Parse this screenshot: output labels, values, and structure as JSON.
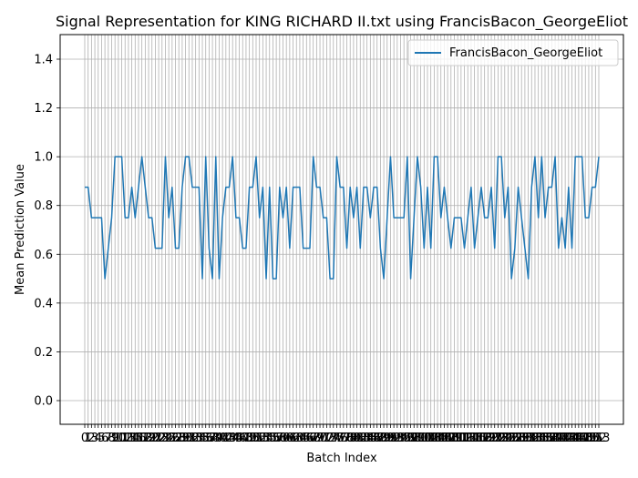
{
  "chart_data": {
    "type": "line",
    "title": "Signal Representation for KING RICHARD II.txt using FrancisBacon_GeorgeEliot",
    "xlabel": "Batch Index",
    "ylabel": "Mean Prediction Value",
    "ylim": [
      -0.1,
      1.5
    ],
    "yticks": [
      "0.0",
      "0.2",
      "0.4",
      "0.6",
      "0.8",
      "1.0",
      "1.2",
      "1.4"
    ],
    "grid": true,
    "legend_position": "upper right",
    "series": [
      {
        "name": "FrancisBacon_GeorgeEliot",
        "color": "#1f77b4",
        "x": [
          0,
          1,
          2,
          3,
          4,
          5,
          6,
          7,
          8,
          9,
          10,
          11,
          12,
          13,
          14,
          15,
          16,
          17,
          18,
          19,
          20,
          21,
          22,
          23,
          24,
          25,
          26,
          27,
          28,
          29,
          30,
          31,
          32,
          33,
          34,
          35,
          36,
          37,
          38,
          39,
          40,
          41,
          42,
          43,
          44,
          45,
          46,
          47,
          48,
          49,
          50,
          51,
          52,
          53,
          54,
          55,
          56,
          57,
          58,
          59,
          60,
          61,
          62,
          63,
          64,
          65,
          66,
          67,
          68,
          69,
          70,
          71,
          72,
          73,
          74,
          75,
          76,
          77,
          78,
          79,
          80,
          81,
          82,
          83,
          84,
          85,
          86,
          87,
          88,
          89,
          90,
          91,
          92,
          93,
          94,
          95,
          96,
          97,
          98,
          99,
          100,
          101,
          102,
          103,
          104,
          105,
          106,
          107,
          108,
          109,
          110,
          111,
          112,
          113,
          114,
          115,
          116,
          117,
          118,
          119,
          120,
          121,
          122,
          123,
          124,
          125,
          126,
          127,
          128,
          129,
          130,
          131,
          132,
          133,
          134,
          135,
          136,
          137,
          138,
          139,
          140,
          141,
          142,
          143,
          144,
          145,
          146,
          147,
          148,
          149,
          150,
          151,
          152,
          153
        ],
        "values": [
          0.875,
          0.875,
          0.75,
          0.75,
          0.75,
          0.75,
          0.5,
          0.625,
          0.75,
          1.0,
          1.0,
          1.0,
          0.75,
          0.75,
          0.875,
          0.75,
          0.875,
          1.0,
          0.875,
          0.75,
          0.75,
          0.625,
          0.625,
          0.625,
          1.0,
          0.75,
          0.875,
          0.625,
          0.625,
          0.875,
          1.0,
          1.0,
          0.875,
          0.875,
          0.875,
          0.5,
          1.0,
          0.625,
          0.5,
          1.0,
          0.5,
          0.75,
          0.875,
          0.875,
          1.0,
          0.75,
          0.75,
          0.625,
          0.625,
          0.875,
          0.875,
          1.0,
          0.75,
          0.875,
          0.5,
          0.875,
          0.5,
          0.5,
          0.875,
          0.75,
          0.875,
          0.625,
          0.875,
          0.875,
          0.875,
          0.625,
          0.625,
          0.625,
          1.0,
          0.875,
          0.875,
          0.75,
          0.75,
          0.5,
          0.5,
          1.0,
          0.875,
          0.875,
          0.625,
          0.875,
          0.75,
          0.875,
          0.625,
          0.875,
          0.875,
          0.75,
          0.875,
          0.875,
          0.625,
          0.5,
          0.75,
          1.0,
          0.75,
          0.75,
          0.75,
          0.75,
          1.0,
          0.5,
          0.75,
          1.0,
          0.875,
          0.625,
          0.875,
          0.625,
          1.0,
          1.0,
          0.75,
          0.875,
          0.75,
          0.625,
          0.75,
          0.75,
          0.75,
          0.625,
          0.75,
          0.875,
          0.625,
          0.75,
          0.875,
          0.75,
          0.75,
          0.875,
          0.625,
          1.0,
          1.0,
          0.75,
          0.875,
          0.5,
          0.625,
          0.875,
          0.75,
          0.625,
          0.5,
          0.875,
          1.0,
          0.75,
          1.0,
          0.75,
          0.875,
          0.875,
          1.0,
          0.625,
          0.75,
          0.625,
          0.875,
          0.625,
          1.0,
          1.0,
          1.0,
          0.75,
          0.75,
          0.875,
          0.875,
          1.0
        ]
      }
    ]
  }
}
